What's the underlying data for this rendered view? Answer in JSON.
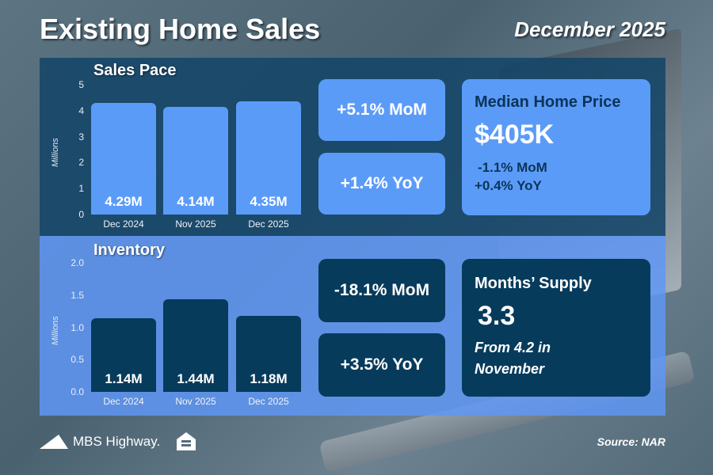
{
  "header": {
    "title": "Existing Home Sales",
    "date": "December 2025"
  },
  "chart_data": [
    {
      "type": "bar",
      "title": "Sales Pace",
      "ylabel": "Millions",
      "ylim": [
        0,
        5
      ],
      "yticks": [
        "0",
        "1",
        "2",
        "3",
        "4",
        "5"
      ],
      "categories": [
        "Dec 2024",
        "Nov 2025",
        "Dec 2025"
      ],
      "values": [
        4.29,
        4.14,
        4.35
      ],
      "labels": [
        "4.29M",
        "4.14M",
        "4.35M"
      ],
      "bar_color": "#5b9bf8"
    },
    {
      "type": "bar",
      "title": "Inventory",
      "ylabel": "Millions",
      "ylim": [
        0,
        2
      ],
      "yticks": [
        "0.0",
        "0.5",
        "1.0",
        "1.5",
        "2.0"
      ],
      "categories": [
        "Dec 2024",
        "Nov 2025",
        "Dec 2025"
      ],
      "values": [
        1.14,
        1.44,
        1.18
      ],
      "labels": [
        "1.14M",
        "1.44M",
        "1.18M"
      ],
      "bar_color": "#073b5c"
    }
  ],
  "sales": {
    "mom": "+5.1% MoM",
    "yoy": "+1.4% YoY"
  },
  "price": {
    "title": "Median Home Price",
    "value": "$405K",
    "mom": "-1.1% MoM",
    "yoy": "+0.4% YoY"
  },
  "inventory": {
    "mom": "-18.1% MoM",
    "yoy": "+3.5% YoY"
  },
  "supply": {
    "title": "Months’ Supply",
    "value": "3.3",
    "note1": "From 4.2 in",
    "note2": "November"
  },
  "footer": {
    "brand": "MBS Highway.",
    "source": "Source: NAR"
  }
}
